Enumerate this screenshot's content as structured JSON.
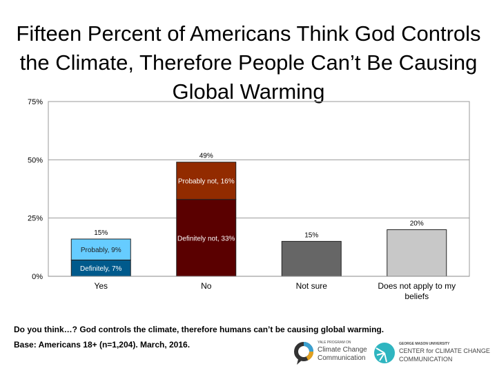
{
  "chart_data": {
    "type": "bar",
    "stacked": true,
    "title": "Fifteen Percent of Americans Think God Controls the Climate, Therefore People Can’t Be Causing Global Warming",
    "ylim": [
      0,
      75
    ],
    "yticks": [
      "0%",
      "25%",
      "50%",
      "75%"
    ],
    "ytick_values": [
      0,
      25,
      50,
      75
    ],
    "grid": true,
    "categories": [
      "Yes",
      "No",
      "Not sure",
      "Does not apply to my beliefs"
    ],
    "bars": [
      {
        "category": "Yes",
        "total_label": "15%",
        "segments": [
          {
            "label": "Definitely, 7%",
            "value": 7,
            "color": "#005a8c",
            "text_color": "#ffffff"
          },
          {
            "label": "Probably, 9%",
            "value": 9,
            "color": "#66ccff",
            "text_color": "#222222"
          }
        ]
      },
      {
        "category": "No",
        "total_label": "49%",
        "segments": [
          {
            "label": "Definitely not, 33%",
            "value": 33,
            "color": "#5a0000",
            "text_color": "#ffffff"
          },
          {
            "label": "Probably not, 16%",
            "value": 16,
            "color": "#922b00",
            "text_color": "#ffffff"
          }
        ]
      },
      {
        "category": "Not sure",
        "total_label": "15%",
        "segments": [
          {
            "label": "",
            "value": 15,
            "color": "#666666",
            "text_color": "#ffffff"
          }
        ]
      },
      {
        "category": "Does not apply to my beliefs",
        "total_label": "20%",
        "segments": [
          {
            "label": "",
            "value": 20,
            "color": "#c8c8c8",
            "text_color": "#000000"
          }
        ]
      }
    ]
  },
  "footer": {
    "question": "Do you think…? God controls the climate, therefore humans can’t be causing global warming.",
    "base": "Base: Americans 18+ (n=1,204). March, 2016."
  },
  "logos": {
    "yale_small": "YALE PROGRAM ON",
    "yale_line1": "Climate Change",
    "yale_line2": "Communication",
    "gmu_small": "GEORGE MASON UNIVERSITY",
    "gmu_line1": "CENTER for CLIMATE CHANGE",
    "gmu_line2": "COMMUNICATION"
  }
}
